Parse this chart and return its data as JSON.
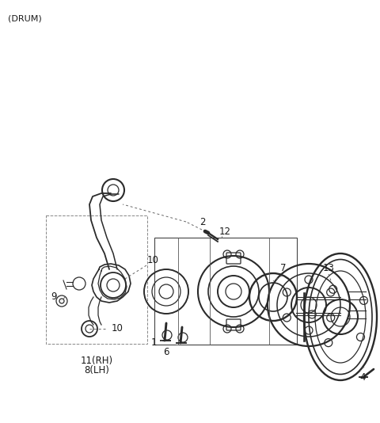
{
  "title": "(DRUM)",
  "background_color": "#ffffff",
  "line_color": "#2a2a2a",
  "text_color": "#1a1a1a",
  "figsize": [
    4.8,
    5.34
  ],
  "dpi": 100
}
